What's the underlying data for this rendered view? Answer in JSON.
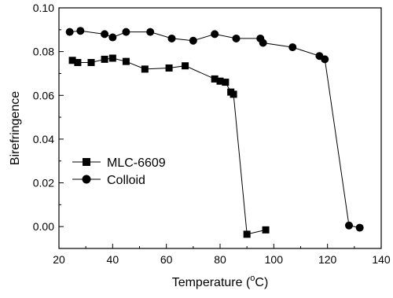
{
  "chart_data": {
    "type": "line",
    "title": "",
    "xlabel_main": "Temperature (",
    "xlabel_sup": "o",
    "xlabel_tail": "C)",
    "ylabel": "Birefringence",
    "xlim": [
      20,
      140
    ],
    "ylim": [
      -0.01,
      0.1
    ],
    "xticks": [
      20,
      40,
      60,
      80,
      100,
      120,
      140
    ],
    "yticks": [
      0.0,
      0.02,
      0.04,
      0.06,
      0.08,
      0.1
    ],
    "ytick_labels": [
      "0.00",
      "0.02",
      "0.04",
      "0.06",
      "0.08",
      "0.10"
    ],
    "grid": false,
    "legend_position": "center-left",
    "series": [
      {
        "name": "MLC-6609",
        "marker": "square",
        "x": [
          25,
          27,
          32,
          37,
          40,
          45,
          52,
          61,
          67,
          78,
          80,
          82,
          84,
          85,
          90,
          97
        ],
        "y": [
          0.076,
          0.075,
          0.075,
          0.0765,
          0.077,
          0.0755,
          0.072,
          0.0725,
          0.0735,
          0.0675,
          0.0665,
          0.066,
          0.0615,
          0.0605,
          -0.0035,
          -0.0015
        ]
      },
      {
        "name": "Colloid",
        "marker": "circle",
        "x": [
          24,
          28,
          37,
          40,
          45,
          54,
          62,
          70,
          78,
          86,
          95,
          96,
          107,
          117,
          119,
          128,
          132
        ],
        "y": [
          0.089,
          0.0895,
          0.088,
          0.0865,
          0.089,
          0.089,
          0.086,
          0.085,
          0.088,
          0.086,
          0.086,
          0.084,
          0.082,
          0.078,
          0.0765,
          0.0005,
          -0.0005
        ]
      }
    ]
  }
}
